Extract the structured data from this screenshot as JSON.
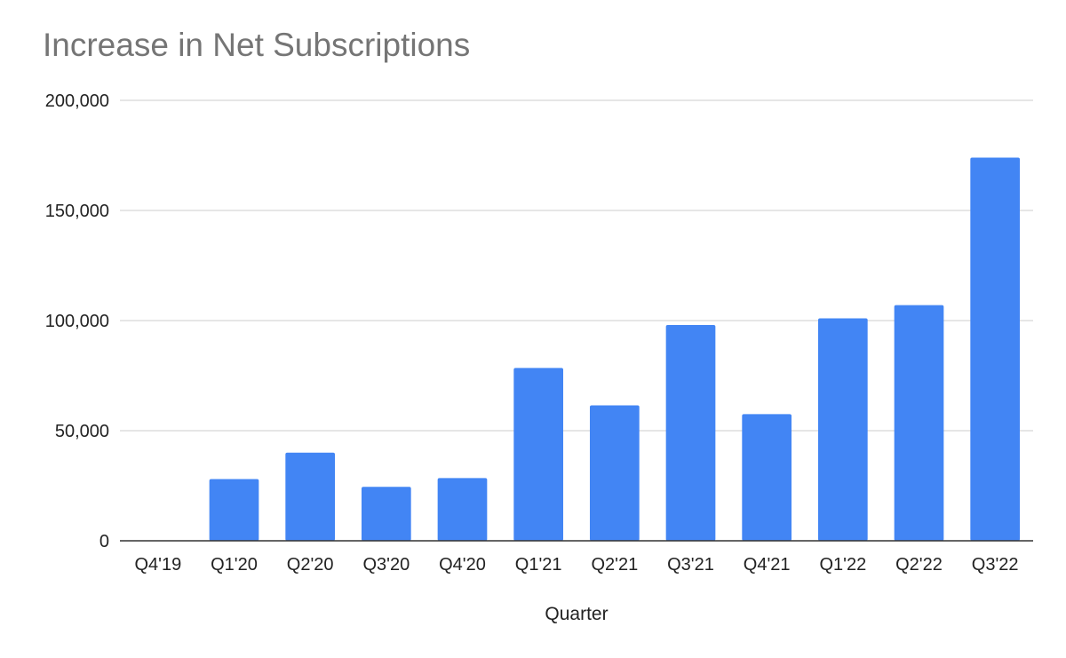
{
  "chart_data": {
    "type": "bar",
    "title": "Increase in Net Subscriptions",
    "xlabel": "Quarter",
    "ylabel": "",
    "categories": [
      "Q4'19",
      "Q1'20",
      "Q2'20",
      "Q3'20",
      "Q4'20",
      "Q1'21",
      "Q2'21",
      "Q3'21",
      "Q4'21",
      "Q1'22",
      "Q2'22",
      "Q3'22"
    ],
    "series": [
      {
        "values": [
          0,
          28000,
          40000,
          24500,
          28500,
          78500,
          61500,
          98000,
          57500,
          101000,
          107000,
          174000
        ]
      }
    ],
    "ylim": [
      0,
      200000
    ],
    "yticks": [
      0,
      50000,
      100000,
      150000,
      200000
    ],
    "ytick_labels": [
      "0",
      "50,000",
      "100,000",
      "150,000",
      "200,000"
    ],
    "grid": true,
    "legend": "none",
    "bar_color": "#4285f4"
  }
}
